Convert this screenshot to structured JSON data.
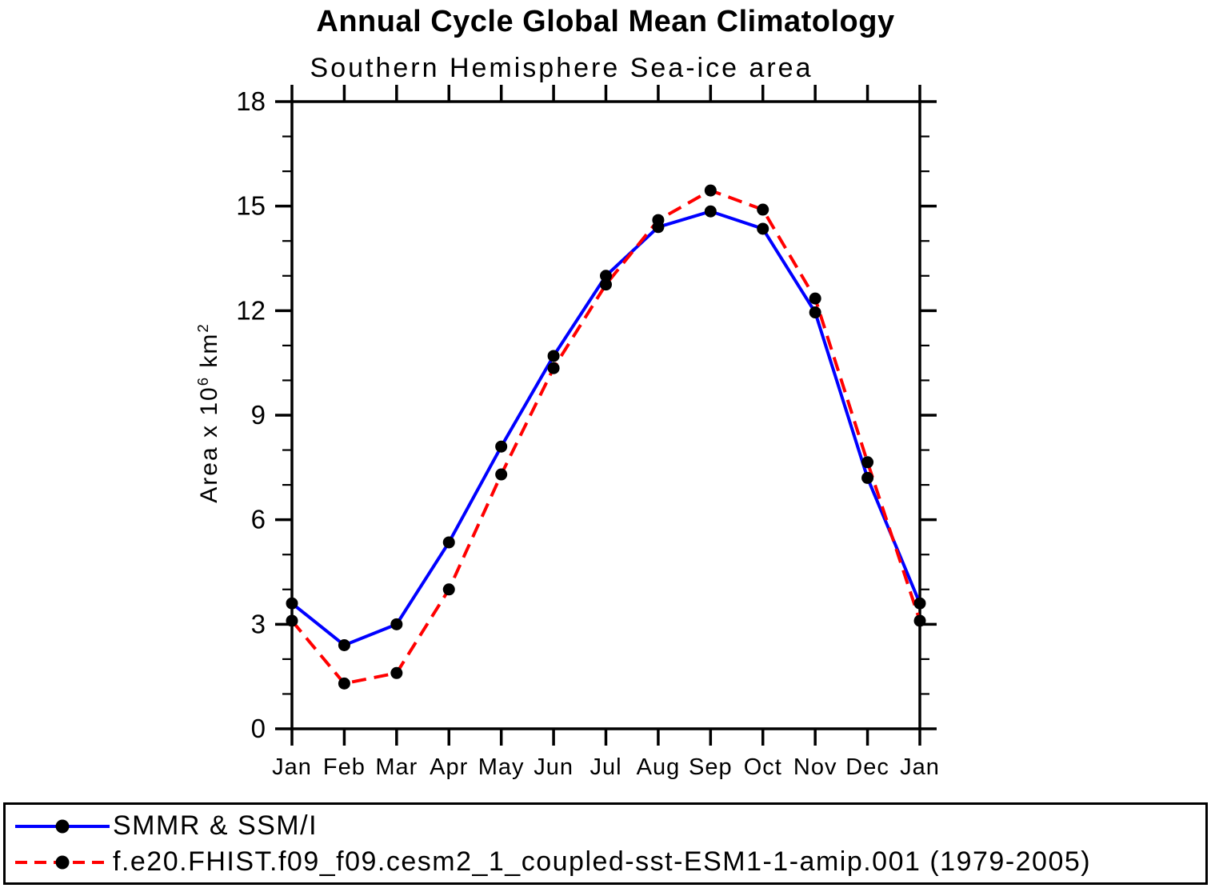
{
  "title": "Annual Cycle Global Mean Climatology",
  "colors": {
    "background": "#ffffff",
    "axis": "#000000",
    "text": "#000000",
    "observation_line": "#0000ff",
    "model_line": "#ff0000",
    "marker": "#000000"
  },
  "chart_data": {
    "type": "line",
    "title": "Annual Cycle Global Mean Climatology",
    "subtitle": "Southern Hemisphere Sea-ice area",
    "ylabel": "Area x 10⁶ km²",
    "ylabel_parts": {
      "prefix": "Area x 10",
      "sup1": "6",
      "mid": " km",
      "sup2": "2"
    },
    "xlabel": "",
    "x_categories": [
      "Jan",
      "Feb",
      "Mar",
      "Apr",
      "May",
      "Jun",
      "Jul",
      "Aug",
      "Sep",
      "Oct",
      "Nov",
      "Dec",
      "Jan"
    ],
    "ylim": [
      0,
      18
    ],
    "yticks_major": [
      0,
      3,
      6,
      9,
      12,
      15,
      18
    ],
    "ytick_minor_step": 1,
    "grid": false,
    "legend_position": "bottom-left-box",
    "series": [
      {
        "name": "SMMR & SSM/I",
        "color": "#0000ff",
        "line_style": "solid",
        "marker": "filled-circle",
        "marker_color": "#000000",
        "values": [
          3.6,
          2.4,
          3.0,
          5.35,
          8.1,
          10.7,
          13.0,
          14.4,
          14.85,
          14.35,
          11.95,
          7.2,
          3.6
        ]
      },
      {
        "name": "f.e20.FHIST.f09_f09.cesm2_1_coupled-sst-ESM1-1-amip.001 (1979-2005)",
        "color": "#ff0000",
        "line_style": "dashed",
        "marker": "filled-circle",
        "marker_color": "#000000",
        "values": [
          3.1,
          1.3,
          1.6,
          4.0,
          7.3,
          10.35,
          12.75,
          14.6,
          15.45,
          14.9,
          12.35,
          7.65,
          3.1
        ]
      }
    ]
  }
}
